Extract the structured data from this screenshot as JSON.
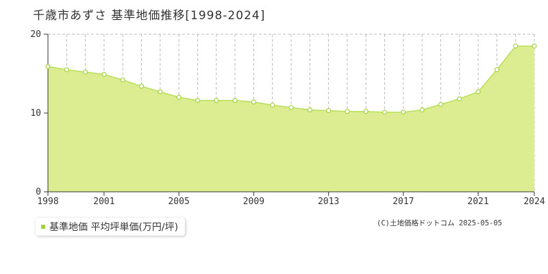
{
  "title": "千歳市あずさ 基準地価推移[1998-2024]",
  "legend": {
    "label": "基準地価 平均坪単価(万円/坪)"
  },
  "credit": "(C)土地価格ドットコム 2025-05-05",
  "colors": {
    "area_fill": "#dcec90",
    "line": "#b8de5a",
    "marker_fill": "#ffffff",
    "marker_stroke": "#a3d33c",
    "grid": "#bbbbbb"
  },
  "chart_data": {
    "type": "area",
    "title": "千歳市あずさ 基準地価推移[1998-2024]",
    "xlabel": "",
    "ylabel": "",
    "xlim": [
      1998,
      2024
    ],
    "ylim": [
      0,
      20
    ],
    "x_ticks": [
      1998,
      2001,
      2005,
      2009,
      2013,
      2017,
      2021,
      2024
    ],
    "y_ticks": [
      0,
      10,
      20
    ],
    "grid": true,
    "legend_position": "bottom-left",
    "series": [
      {
        "name": "基準地価 平均坪単価(万円/坪)",
        "x": [
          1998,
          1999,
          2000,
          2001,
          2002,
          2003,
          2004,
          2005,
          2006,
          2007,
          2008,
          2009,
          2010,
          2011,
          2012,
          2013,
          2014,
          2015,
          2016,
          2017,
          2018,
          2019,
          2020,
          2021,
          2022,
          2023,
          2024
        ],
        "values": [
          15.9,
          15.5,
          15.2,
          14.9,
          14.2,
          13.4,
          12.7,
          12.0,
          11.6,
          11.6,
          11.6,
          11.4,
          11.0,
          10.7,
          10.4,
          10.3,
          10.2,
          10.2,
          10.1,
          10.1,
          10.4,
          11.1,
          11.8,
          12.7,
          15.5,
          18.5,
          18.5
        ]
      }
    ]
  }
}
